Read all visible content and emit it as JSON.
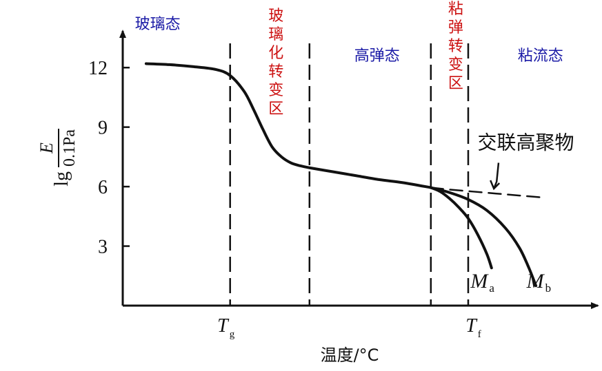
{
  "chart_data": {
    "type": "line",
    "title": "",
    "xlabel": "温度/°C",
    "ylabel": {
      "prefix": "lg",
      "numerator": "E",
      "denominator": "0.1Pa"
    },
    "ylim": [
      0,
      13.5
    ],
    "yticks": [
      3,
      6,
      9,
      12
    ],
    "xlim": [
      0,
      100
    ],
    "xticks": [
      {
        "x": 23,
        "main": "T",
        "sub": "g"
      },
      {
        "x": 76,
        "main": "T",
        "sub": "f"
      }
    ],
    "grid": false,
    "dividers": [
      23,
      40,
      66,
      74
    ],
    "regions": [
      {
        "label": "玻璃态",
        "color": "#1a1aa6",
        "x": 6,
        "lines": [
          "玻璃态"
        ]
      },
      {
        "label": "玻璃化转变区",
        "color": "#cc1111",
        "x": 31.5,
        "lines": [
          "玻",
          "璃",
          "化",
          "转",
          "变",
          "区"
        ]
      },
      {
        "label": "高弹态",
        "color": "#1a1aa6",
        "x": 53,
        "lines": [
          "高弹态"
        ]
      },
      {
        "label": "粘弹转变区",
        "color": "#cc1111",
        "x": 70,
        "lines": [
          "粘",
          "弹",
          "转",
          "变",
          "区"
        ]
      },
      {
        "label": "粘流态",
        "color": "#1a1aa6",
        "x": 88,
        "lines": [
          "粘流态"
        ]
      }
    ],
    "series": [
      {
        "name": "",
        "style": "solid",
        "x": [
          5,
          10,
          15,
          20,
          23,
          26,
          28,
          30,
          32,
          34,
          36,
          38,
          40,
          45,
          50,
          55,
          60,
          66
        ],
        "y": [
          12.2,
          12.15,
          12.05,
          11.9,
          11.6,
          10.8,
          9.9,
          8.9,
          8.0,
          7.5,
          7.2,
          7.05,
          6.95,
          6.75,
          6.55,
          6.35,
          6.2,
          5.95
        ]
      },
      {
        "name": "交联高聚物",
        "style": "dashed",
        "x": [
          66,
          70,
          75,
          80,
          85,
          90
        ],
        "y": [
          5.95,
          5.85,
          5.75,
          5.65,
          5.55,
          5.45
        ]
      },
      {
        "name": "Ma",
        "style": "solid",
        "x": [
          66,
          68,
          70,
          72,
          74,
          76,
          78,
          79
        ],
        "y": [
          5.95,
          5.75,
          5.4,
          4.95,
          4.4,
          3.6,
          2.6,
          1.9
        ]
      },
      {
        "name": "Mb",
        "style": "solid",
        "x": [
          66,
          70,
          74,
          78,
          82,
          85,
          87,
          88.5
        ],
        "y": [
          5.95,
          5.7,
          5.35,
          4.8,
          3.9,
          2.9,
          1.9,
          1.0
        ]
      }
    ],
    "annotations": [
      {
        "text": "交联高聚物",
        "x": 76,
        "y": 7.9
      },
      {
        "text": "M",
        "sub": "a",
        "x": 74.5,
        "y": 0.9
      },
      {
        "text": "M",
        "sub": "b",
        "x": 86.5,
        "y": 0.9
      }
    ],
    "arrow": {
      "from": [
        80.5,
        7.2
      ],
      "to": [
        79.5,
        5.9
      ]
    }
  }
}
